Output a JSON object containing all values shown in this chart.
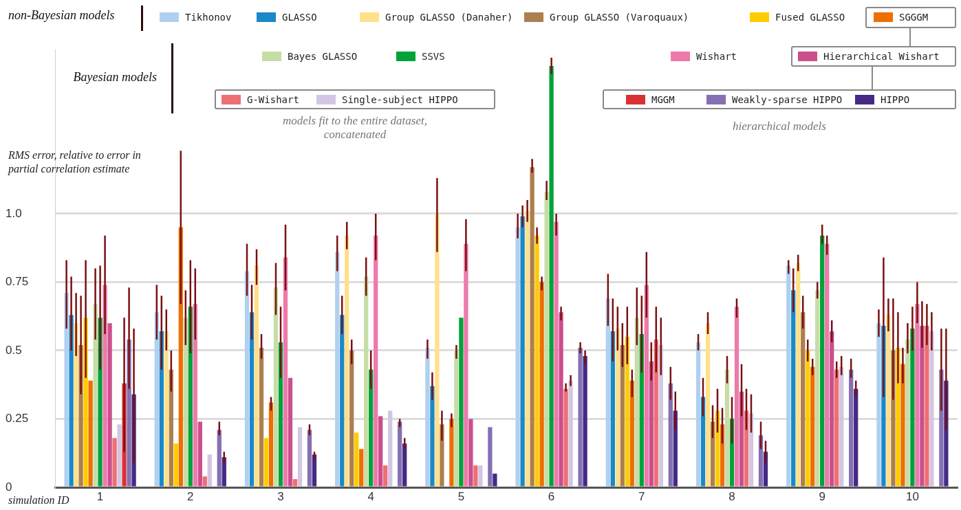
{
  "chart_data": {
    "type": "bar",
    "ylabel": "RMS error, relative to error in partial correlation estimate",
    "xlabel": "simulation ID",
    "categories": [
      "1",
      "2",
      "3",
      "4",
      "5",
      "6",
      "7",
      "8",
      "9",
      "10"
    ],
    "ylim": [
      0,
      1.6
    ],
    "yticks": [
      0,
      0.25,
      0.5,
      0.75,
      {
        "value": 1,
        "label": "1.0"
      }
    ],
    "grid": "y",
    "legend": "top",
    "annotations": [
      "non-Bayesian models",
      "Bayesian models",
      "models fit to the entire dataset, concatenated",
      "hierarchical models"
    ],
    "series": [
      {
        "name": "Tikhonov",
        "color": "#b0d0ef",
        "values": [
          0.71,
          0.64,
          0.79,
          0.86,
          0.51,
          0.95,
          0.69,
          0.53,
          0.81,
          0.6
        ],
        "errors": [
          [
            0.58,
            0.83
          ],
          [
            0.54,
            0.74
          ],
          [
            0.7,
            0.89
          ],
          [
            0.79,
            0.92
          ],
          [
            0.47,
            0.54
          ],
          [
            0.91,
            1.0
          ],
          [
            0.59,
            0.78
          ],
          [
            0.5,
            0.56
          ],
          [
            0.78,
            0.83
          ],
          [
            0.55,
            0.65
          ]
        ]
      },
      {
        "name": "GLASSO",
        "color": "#1a88c9",
        "values": [
          0.63,
          0.57,
          0.64,
          0.63,
          0.37,
          0.99,
          0.57,
          0.33,
          0.72,
          0.59
        ],
        "errors": [
          [
            0.5,
            0.77
          ],
          [
            0.43,
            0.7
          ],
          [
            0.54,
            0.74
          ],
          [
            0.56,
            0.7
          ],
          [
            0.32,
            0.42
          ],
          [
            0.95,
            1.03
          ],
          [
            0.46,
            0.69
          ],
          [
            0.26,
            0.4
          ],
          [
            0.64,
            0.8
          ],
          [
            0.33,
            0.84
          ]
        ]
      },
      {
        "name": "Group GLASSO (Danaher)",
        "color": "#ffe08a",
        "values": [
          0.6,
          0.57,
          0.81,
          0.92,
          1.0,
          1.01,
          0.58,
          0.6,
          0.82,
          0.63
        ],
        "errors": [
          [
            0.48,
            0.71
          ],
          [
            0.5,
            0.65
          ],
          [
            0.74,
            0.87
          ],
          [
            0.87,
            0.97
          ],
          [
            0.86,
            1.13
          ],
          [
            0.97,
            1.05
          ],
          [
            0.5,
            0.66
          ],
          [
            0.56,
            0.64
          ],
          [
            0.79,
            0.85
          ],
          [
            0.57,
            0.69
          ]
        ]
      },
      {
        "name": "Group GLASSO (Varoquaux)",
        "color": "#ad7f4e",
        "values": [
          0.52,
          0.43,
          0.51,
          0.5,
          0.23,
          1.17,
          0.52,
          0.24,
          0.64,
          0.5
        ],
        "errors": [
          [
            0.34,
            0.7
          ],
          [
            0.35,
            0.5
          ],
          [
            0.47,
            0.56
          ],
          [
            0.45,
            0.54
          ],
          [
            0.17,
            0.28
          ],
          [
            1.15,
            1.2
          ],
          [
            0.44,
            0.6
          ],
          [
            0.18,
            0.3
          ],
          [
            0.58,
            0.7
          ],
          [
            0.32,
            0.69
          ]
        ]
      },
      {
        "name": "Fused GLASSO",
        "color": "#ffcc00",
        "values": [
          0.62,
          0.16,
          0.18,
          0.2,
          null,
          0.92,
          0.55,
          0.28,
          0.5,
          0.51
        ],
        "errors": [
          [
            0.4,
            0.83
          ],
          null,
          null,
          null,
          null,
          [
            0.89,
            0.95
          ],
          [
            0.45,
            0.66
          ],
          [
            0.2,
            0.36
          ],
          [
            0.46,
            0.54
          ],
          [
            0.38,
            0.64
          ]
        ]
      },
      {
        "name": "SGGGM",
        "color": "#ee6e00",
        "values": [
          0.39,
          0.95,
          0.31,
          0.14,
          0.25,
          0.75,
          0.39,
          0.23,
          0.44,
          0.45
        ],
        "errors": [
          null,
          [
            0.67,
            1.23
          ],
          [
            0.28,
            0.33
          ],
          null,
          [
            0.22,
            0.27
          ],
          [
            0.72,
            0.77
          ],
          [
            0.33,
            0.43
          ],
          [
            0.16,
            0.29
          ],
          [
            0.41,
            0.47
          ],
          [
            0.38,
            0.51
          ]
        ]
      },
      {
        "name": "Bayes GLASSO",
        "color": "#c6dda5",
        "values": [
          0.67,
          0.62,
          0.73,
          0.77,
          0.5,
          1.08,
          0.62,
          0.43,
          0.72,
          0.54
        ],
        "errors": [
          [
            0.54,
            0.8
          ],
          [
            0.52,
            0.72
          ],
          [
            0.63,
            0.82
          ],
          [
            0.7,
            0.84
          ],
          [
            0.47,
            0.52
          ],
          [
            1.05,
            1.12
          ],
          [
            0.52,
            0.73
          ],
          [
            0.38,
            0.48
          ],
          [
            0.69,
            0.75
          ],
          [
            0.49,
            0.6
          ]
        ]
      },
      {
        "name": "SSVS",
        "color": "#00a23a",
        "values": [
          0.62,
          0.66,
          0.53,
          0.43,
          0.62,
          1.54,
          0.56,
          0.25,
          0.92,
          0.58
        ],
        "errors": [
          [
            0.43,
            0.81
          ],
          [
            0.49,
            0.83
          ],
          [
            0.4,
            0.66
          ],
          [
            0.36,
            0.5
          ],
          null,
          [
            1.51,
            1.57
          ],
          [
            0.42,
            0.7
          ],
          [
            0.16,
            0.33
          ],
          [
            0.89,
            0.96
          ],
          [
            0.5,
            0.66
          ]
        ]
      },
      {
        "name": "Wishart",
        "color": "#ed7aab",
        "values": [
          0.74,
          0.67,
          0.84,
          0.92,
          0.89,
          0.97,
          0.74,
          0.66,
          0.89,
          0.67
        ],
        "errors": [
          [
            0.56,
            0.92
          ],
          [
            0.54,
            0.8
          ],
          [
            0.72,
            0.96
          ],
          [
            0.83,
            1.0
          ],
          [
            0.79,
            0.98
          ],
          [
            0.92,
            1.0
          ],
          [
            0.62,
            0.86
          ],
          [
            0.62,
            0.69
          ],
          [
            0.85,
            0.92
          ],
          [
            0.6,
            0.75
          ]
        ]
      },
      {
        "name": "Hierarchical Wishart",
        "color": "#cb4f8d",
        "values": [
          0.6,
          0.24,
          0.4,
          0.26,
          0.25,
          0.64,
          0.46,
          0.35,
          0.57,
          0.59
        ],
        "errors": [
          null,
          null,
          null,
          null,
          null,
          [
            0.61,
            0.66
          ],
          [
            0.39,
            0.53
          ],
          [
            0.26,
            0.45
          ],
          [
            0.53,
            0.61
          ],
          [
            0.51,
            0.68
          ]
        ]
      },
      {
        "name": "G-Wishart",
        "color": "#ee6f73",
        "values": [
          0.18,
          0.04,
          0.03,
          0.08,
          0.08,
          0.36,
          0.54,
          0.28,
          0.43,
          0.59
        ],
        "errors": [
          null,
          null,
          null,
          null,
          null,
          [
            0.35,
            0.38
          ],
          [
            0.42,
            0.66
          ],
          [
            0.21,
            0.36
          ],
          [
            0.4,
            0.46
          ],
          [
            0.52,
            0.67
          ]
        ]
      },
      {
        "name": "Single-subject HIPPO",
        "color": "#d3c6e2",
        "values": [
          0.23,
          0.12,
          0.22,
          0.28,
          0.08,
          0.39,
          0.52,
          0.27,
          0.44,
          0.57
        ],
        "errors": [
          null,
          null,
          null,
          null,
          null,
          [
            0.37,
            0.41
          ],
          [
            0.41,
            0.62
          ],
          [
            0.2,
            0.34
          ],
          [
            0.41,
            0.48
          ],
          [
            0.5,
            0.64
          ]
        ]
      },
      {
        "name": "MGGM",
        "color": "#d93236",
        "values": [
          0.38,
          null,
          null,
          null,
          null,
          null,
          null,
          null,
          null,
          null
        ],
        "errors": [
          [
            0.13,
            0.62
          ],
          null,
          null,
          null,
          null,
          null,
          null,
          null,
          null,
          null
        ]
      },
      {
        "name": "Weakly-sparse HIPPO",
        "color": "#8470b3",
        "values": [
          0.54,
          0.21,
          0.21,
          0.24,
          0.22,
          0.51,
          0.38,
          0.19,
          0.43,
          0.43
        ],
        "errors": [
          [
            0.36,
            0.73
          ],
          [
            0.19,
            0.24
          ],
          [
            0.19,
            0.23
          ],
          [
            0.22,
            0.25
          ],
          null,
          [
            0.49,
            0.53
          ],
          [
            0.32,
            0.44
          ],
          [
            0.14,
            0.24
          ],
          [
            0.4,
            0.47
          ],
          [
            0.28,
            0.58
          ]
        ]
      },
      {
        "name": "HIPPO",
        "color": "#452a85",
        "values": [
          0.34,
          0.11,
          0.12,
          0.16,
          0.05,
          0.48,
          0.28,
          0.13,
          0.36,
          0.39
        ],
        "errors": [
          [
            0.09,
            0.58
          ],
          [
            0.09,
            0.13
          ],
          [
            0.1,
            0.13
          ],
          [
            0.14,
            0.18
          ],
          null,
          [
            0.45,
            0.5
          ],
          [
            0.21,
            0.35
          ],
          [
            0.09,
            0.17
          ],
          [
            0.33,
            0.39
          ],
          [
            0.21,
            0.58
          ]
        ]
      }
    ]
  }
}
